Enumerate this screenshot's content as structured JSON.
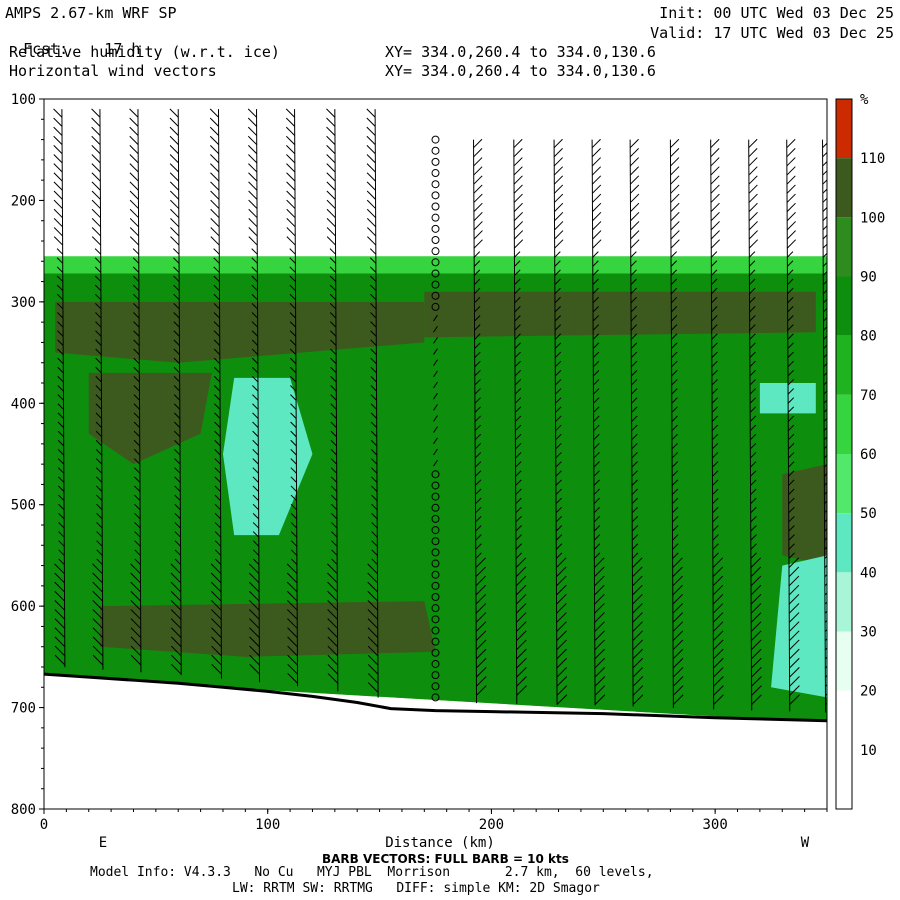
{
  "header": {
    "title": "AMPS 2.67-km WRF SP",
    "fcst_label": "Fcst:",
    "fcst_value": "17 h",
    "init": "Init: 00 UTC Wed 03 Dec 25",
    "valid": "Valid: 17 UTC Wed 03 Dec 25",
    "field1": "Relative humidity (w.r.t. ice)",
    "field2": "Horizontal wind vectors",
    "xy1": "XY= 334.0,260.4 to 334.0,130.6",
    "xy2": "XY= 334.0,260.4 to 334.0,130.6"
  },
  "footer": {
    "barb_note": "BARB VECTORS: FULL BARB = 10 kts",
    "model_info": "Model Info: V4.3.3   No Cu   MYJ PBL  Morrison       2.7 km,  60 levels,",
    "physics": "LW: RRTM SW: RRTMG   DIFF: simple KM: 2D Smagor"
  },
  "chart_data": {
    "type": "heatmap",
    "title": "Relative humidity (w.r.t. ice)",
    "xlabel": "Distance (km)",
    "ylabel": "",
    "xlim": [
      0,
      350
    ],
    "ylim": [
      800,
      100
    ],
    "x_ticks": [
      0,
      100,
      200,
      300
    ],
    "y_ticks": [
      100,
      200,
      300,
      400,
      500,
      600,
      700,
      800
    ],
    "left_end_label": "E",
    "right_end_label": "W",
    "colorbar": {
      "unit": "%",
      "levels": [
        10,
        20,
        30,
        40,
        50,
        60,
        70,
        80,
        90,
        100,
        110
      ],
      "colors": [
        "#ffffff",
        "#ffffff",
        "#e6fff0",
        "#a8f5d8",
        "#5de8c2",
        "#52e86a",
        "#36d43e",
        "#1fb31f",
        "#0d8f0d",
        "#2e8b1e",
        "#3d5a1e",
        "#cc2a00"
      ]
    },
    "terrain_pressure": [
      [
        0,
        667
      ],
      [
        20,
        670
      ],
      [
        40,
        673
      ],
      [
        60,
        676
      ],
      [
        80,
        680
      ],
      [
        100,
        684
      ],
      [
        120,
        689
      ],
      [
        140,
        695
      ],
      [
        155,
        701
      ],
      [
        175,
        703
      ],
      [
        200,
        704
      ],
      [
        250,
        706
      ],
      [
        300,
        710
      ],
      [
        350,
        713
      ]
    ],
    "rh_contours": [
      {
        "level": 60,
        "region": [
          [
            0,
            255
          ],
          [
            350,
            255
          ],
          [
            350,
            715
          ],
          [
            0,
            670
          ]
        ]
      },
      {
        "level": 80,
        "region": [
          [
            0,
            272
          ],
          [
            350,
            272
          ],
          [
            350,
            715
          ],
          [
            0,
            670
          ]
        ]
      },
      {
        "level": 100,
        "region": [
          [
            5,
            300
          ],
          [
            170,
            300
          ],
          [
            170,
            340
          ],
          [
            60,
            360
          ],
          [
            5,
            350
          ]
        ]
      },
      {
        "level": 100,
        "region": [
          [
            20,
            370
          ],
          [
            75,
            370
          ],
          [
            70,
            430
          ],
          [
            40,
            460
          ],
          [
            20,
            430
          ]
        ]
      },
      {
        "level": 100,
        "region": [
          [
            25,
            600
          ],
          [
            170,
            595
          ],
          [
            175,
            645
          ],
          [
            90,
            650
          ],
          [
            25,
            640
          ]
        ]
      },
      {
        "level": 40,
        "region": [
          [
            85,
            375
          ],
          [
            110,
            375
          ],
          [
            120,
            450
          ],
          [
            105,
            530
          ],
          [
            85,
            530
          ],
          [
            80,
            450
          ]
        ]
      },
      {
        "level": 100,
        "region": [
          [
            170,
            290
          ],
          [
            345,
            290
          ],
          [
            345,
            330
          ],
          [
            170,
            335
          ]
        ]
      },
      {
        "level": 100,
        "region": [
          [
            330,
            470
          ],
          [
            350,
            460
          ],
          [
            350,
            560
          ],
          [
            330,
            550
          ]
        ]
      },
      {
        "level": 40,
        "region": [
          [
            320,
            380
          ],
          [
            345,
            380
          ],
          [
            345,
            410
          ],
          [
            320,
            410
          ]
        ]
      },
      {
        "level": 40,
        "region": [
          [
            330,
            560
          ],
          [
            350,
            550
          ],
          [
            350,
            690
          ],
          [
            325,
            680
          ]
        ]
      }
    ],
    "wind_barb_columns_km": [
      8,
      25,
      42,
      60,
      78,
      95,
      112,
      130,
      148,
      175,
      192,
      210,
      228,
      245,
      262,
      280,
      298,
      315,
      332,
      348
    ],
    "calm_column_km": 175
  }
}
